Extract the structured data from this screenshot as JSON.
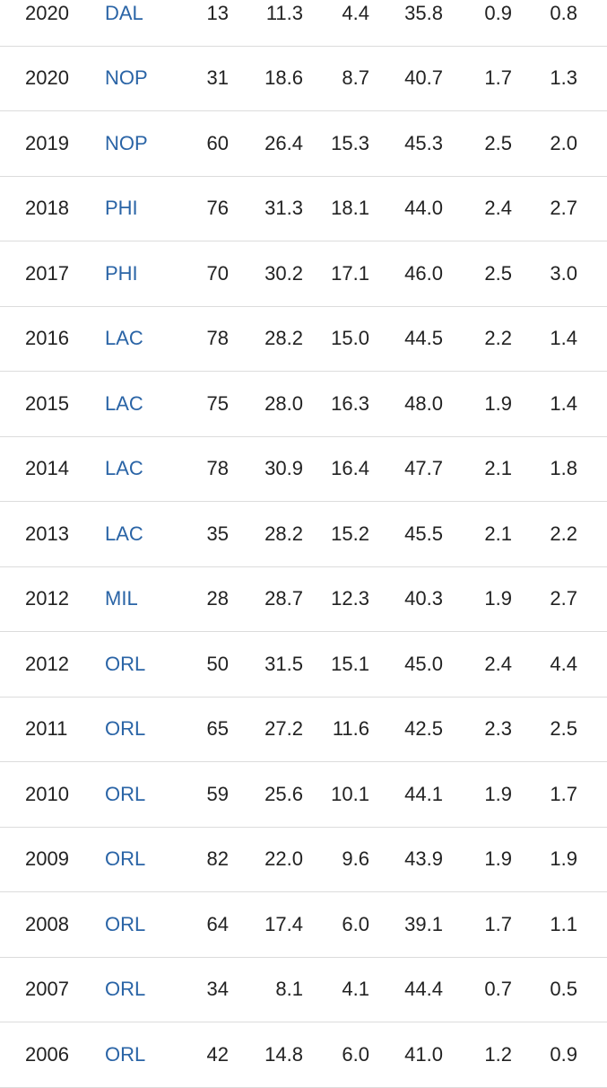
{
  "stats": {
    "rows": [
      {
        "year": "2020",
        "team": "DAL",
        "gp": "13",
        "pts": "11.3",
        "reb": "4.4",
        "pct": "35.8",
        "ast": "0.9",
        "blk": "0.8"
      },
      {
        "year": "2020",
        "team": "NOP",
        "gp": "31",
        "pts": "18.6",
        "reb": "8.7",
        "pct": "40.7",
        "ast": "1.7",
        "blk": "1.3"
      },
      {
        "year": "2019",
        "team": "NOP",
        "gp": "60",
        "pts": "26.4",
        "reb": "15.3",
        "pct": "45.3",
        "ast": "2.5",
        "blk": "2.0"
      },
      {
        "year": "2018",
        "team": "PHI",
        "gp": "76",
        "pts": "31.3",
        "reb": "18.1",
        "pct": "44.0",
        "ast": "2.4",
        "blk": "2.7"
      },
      {
        "year": "2017",
        "team": "PHI",
        "gp": "70",
        "pts": "30.2",
        "reb": "17.1",
        "pct": "46.0",
        "ast": "2.5",
        "blk": "3.0"
      },
      {
        "year": "2016",
        "team": "LAC",
        "gp": "78",
        "pts": "28.2",
        "reb": "15.0",
        "pct": "44.5",
        "ast": "2.2",
        "blk": "1.4"
      },
      {
        "year": "2015",
        "team": "LAC",
        "gp": "75",
        "pts": "28.0",
        "reb": "16.3",
        "pct": "48.0",
        "ast": "1.9",
        "blk": "1.4"
      },
      {
        "year": "2014",
        "team": "LAC",
        "gp": "78",
        "pts": "30.9",
        "reb": "16.4",
        "pct": "47.7",
        "ast": "2.1",
        "blk": "1.8"
      },
      {
        "year": "2013",
        "team": "LAC",
        "gp": "35",
        "pts": "28.2",
        "reb": "15.2",
        "pct": "45.5",
        "ast": "2.1",
        "blk": "2.2"
      },
      {
        "year": "2012",
        "team": "MIL",
        "gp": "28",
        "pts": "28.7",
        "reb": "12.3",
        "pct": "40.3",
        "ast": "1.9",
        "blk": "2.7"
      },
      {
        "year": "2012",
        "team": "ORL",
        "gp": "50",
        "pts": "31.5",
        "reb": "15.1",
        "pct": "45.0",
        "ast": "2.4",
        "blk": "4.4"
      },
      {
        "year": "2011",
        "team": "ORL",
        "gp": "65",
        "pts": "27.2",
        "reb": "11.6",
        "pct": "42.5",
        "ast": "2.3",
        "blk": "2.5"
      },
      {
        "year": "2010",
        "team": "ORL",
        "gp": "59",
        "pts": "25.6",
        "reb": "10.1",
        "pct": "44.1",
        "ast": "1.9",
        "blk": "1.7"
      },
      {
        "year": "2009",
        "team": "ORL",
        "gp": "82",
        "pts": "22.0",
        "reb": "9.6",
        "pct": "43.9",
        "ast": "1.9",
        "blk": "1.9"
      },
      {
        "year": "2008",
        "team": "ORL",
        "gp": "64",
        "pts": "17.4",
        "reb": "6.0",
        "pct": "39.1",
        "ast": "1.7",
        "blk": "1.1"
      },
      {
        "year": "2007",
        "team": "ORL",
        "gp": "34",
        "pts": "8.1",
        "reb": "4.1",
        "pct": "44.4",
        "ast": "0.7",
        "blk": "0.5"
      },
      {
        "year": "2006",
        "team": "ORL",
        "gp": "42",
        "pts": "14.8",
        "reb": "6.0",
        "pct": "41.0",
        "ast": "1.2",
        "blk": "0.9"
      }
    ]
  },
  "colors": {
    "team_link": "#2a64a6",
    "text": "#222222",
    "divider": "#dcdcdc"
  }
}
